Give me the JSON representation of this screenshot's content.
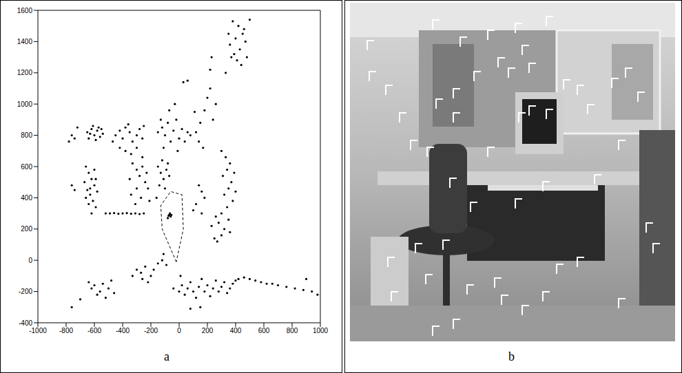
{
  "chart_data": {
    "type": "scatter",
    "xlim": [
      -1000,
      1000
    ],
    "ylim": [
      -400,
      1600
    ],
    "xticks": [
      -1000,
      -800,
      -600,
      -400,
      -200,
      0,
      200,
      400,
      600,
      800,
      1000
    ],
    "yticks": [
      -400,
      -200,
      0,
      200,
      400,
      600,
      800,
      1000,
      1200,
      1400,
      1600
    ],
    "grid": false,
    "series": [
      {
        "type": "scatter",
        "color": "#000000",
        "marker": "dot",
        "x": [
          380,
          420,
          450,
          400,
          470,
          360,
          430,
          390,
          480,
          410,
          350,
          500,
          440,
          460,
          370,
          330,
          -650,
          -620,
          -600,
          -580,
          -560,
          -640,
          -610,
          -550,
          -590,
          -630,
          -570,
          -540,
          -780,
          -760,
          -740,
          -720,
          -760,
          -740,
          -450,
          -420,
          -400,
          -380,
          -350,
          -330,
          -300,
          -280,
          -260,
          -420,
          -380,
          -340,
          -300,
          -250,
          -470,
          -360,
          -150,
          -120,
          -100,
          -80,
          -60,
          -40,
          -20,
          0,
          20,
          40,
          60,
          -110,
          -70,
          -30,
          -10,
          80,
          -130,
          30,
          120,
          150,
          180,
          200,
          220,
          140,
          170,
          240,
          260,
          110,
          -660,
          -640,
          -620,
          -600,
          -650,
          -630,
          -610,
          -590,
          -670,
          -580,
          -620,
          -640,
          -600,
          -660,
          -590,
          -630,
          -330,
          -300,
          -280,
          -260,
          -240,
          -220,
          -300,
          -340,
          -270,
          -230,
          -350,
          -260,
          -210,
          -310,
          -520,
          -490,
          -460,
          -430,
          -400,
          -370,
          -340,
          -310,
          -280,
          -250,
          -150,
          -130,
          -110,
          -140,
          -120,
          -90,
          -70,
          -100,
          -160,
          -80,
          -70,
          -60,
          -80,
          -65,
          -75,
          -55,
          300,
          330,
          360,
          340,
          310,
          370,
          350,
          320,
          380,
          340,
          300,
          260,
          280,
          320,
          360,
          300,
          250,
          230,
          390,
          400,
          270,
          350,
          140,
          160,
          180,
          120,
          100,
          160,
          -300,
          -270,
          -240,
          -200,
          -180,
          -150,
          -120,
          -110,
          -90,
          -260,
          -330,
          -220,
          -640,
          -620,
          -600,
          -580,
          -560,
          -540,
          -520,
          -500,
          -480,
          -460,
          -40,
          0,
          20,
          40,
          60,
          80,
          100,
          120,
          140,
          160,
          180,
          200,
          220,
          240,
          260,
          280,
          300,
          320,
          340,
          360,
          380,
          400,
          420,
          10,
          460,
          500,
          540,
          580,
          620,
          660,
          700,
          760,
          820,
          880,
          940,
          980,
          -760,
          150,
          80,
          -700,
          220,
          230,
          60,
          900
        ],
        "values": [
          1530,
          1500,
          1450,
          1420,
          1400,
          1380,
          1350,
          1320,
          1300,
          1280,
          1450,
          1540,
          1250,
          1480,
          1300,
          1200,
          820,
          840,
          800,
          830,
          790,
          780,
          860,
          840,
          770,
          810,
          850,
          810,
          760,
          800,
          780,
          850,
          480,
          450,
          800,
          830,
          780,
          850,
          820,
          760,
          800,
          840,
          780,
          720,
          700,
          680,
          720,
          860,
          760,
          870,
          820,
          850,
          800,
          880,
          760,
          830,
          900,
          780,
          840,
          760,
          820,
          720,
          960,
          1000,
          700,
          800,
          900,
          1140,
          820,
          880,
          960,
          1040,
          1100,
          760,
          720,
          900,
          1000,
          950,
          600,
          560,
          520,
          480,
          450,
          420,
          380,
          340,
          500,
          440,
          300,
          360,
          580,
          400,
          520,
          460,
          620,
          580,
          540,
          600,
          500,
          460,
          460,
          420,
          400,
          560,
          520,
          660,
          380,
          360,
          300,
          300,
          302,
          298,
          300,
          302,
          298,
          300,
          296,
          300,
          600,
          560,
          520,
          480,
          640,
          580,
          540,
          460,
          400,
          620,
          290,
          280,
          270,
          300,
          285,
          290,
          700,
          660,
          620,
          580,
          540,
          500,
          460,
          420,
          380,
          340,
          300,
          280,
          240,
          200,
          180,
          160,
          140,
          220,
          560,
          440,
          120,
          260,
          480,
          440,
          400,
          360,
          320,
          300,
          -60,
          -80,
          -40,
          -100,
          -60,
          -20,
          0,
          40,
          -30,
          -120,
          -100,
          -140,
          -140,
          -180,
          -160,
          -220,
          -200,
          -150,
          -240,
          -180,
          -130,
          -210,
          -180,
          -200,
          -160,
          -220,
          -180,
          -140,
          -200,
          -240,
          -170,
          -120,
          -200,
          -160,
          -230,
          -180,
          -130,
          -200,
          -170,
          -140,
          -210,
          -180,
          -150,
          -130,
          -120,
          -100,
          -110,
          -120,
          -130,
          -140,
          -150,
          -150,
          -160,
          -170,
          -180,
          -190,
          -200,
          -220,
          -300,
          -300,
          -310,
          -250,
          1220,
          1300,
          1150,
          -120
        ]
      },
      {
        "type": "line",
        "color": "#000000",
        "line_style": "dashed",
        "x": [
          -20,
          -120,
          -130,
          -60,
          20,
          30,
          -20
        ],
        "values": [
          -10,
          200,
          350,
          440,
          420,
          200,
          -10
        ]
      }
    ]
  },
  "panel_labels": [
    "a",
    "b"
  ]
}
